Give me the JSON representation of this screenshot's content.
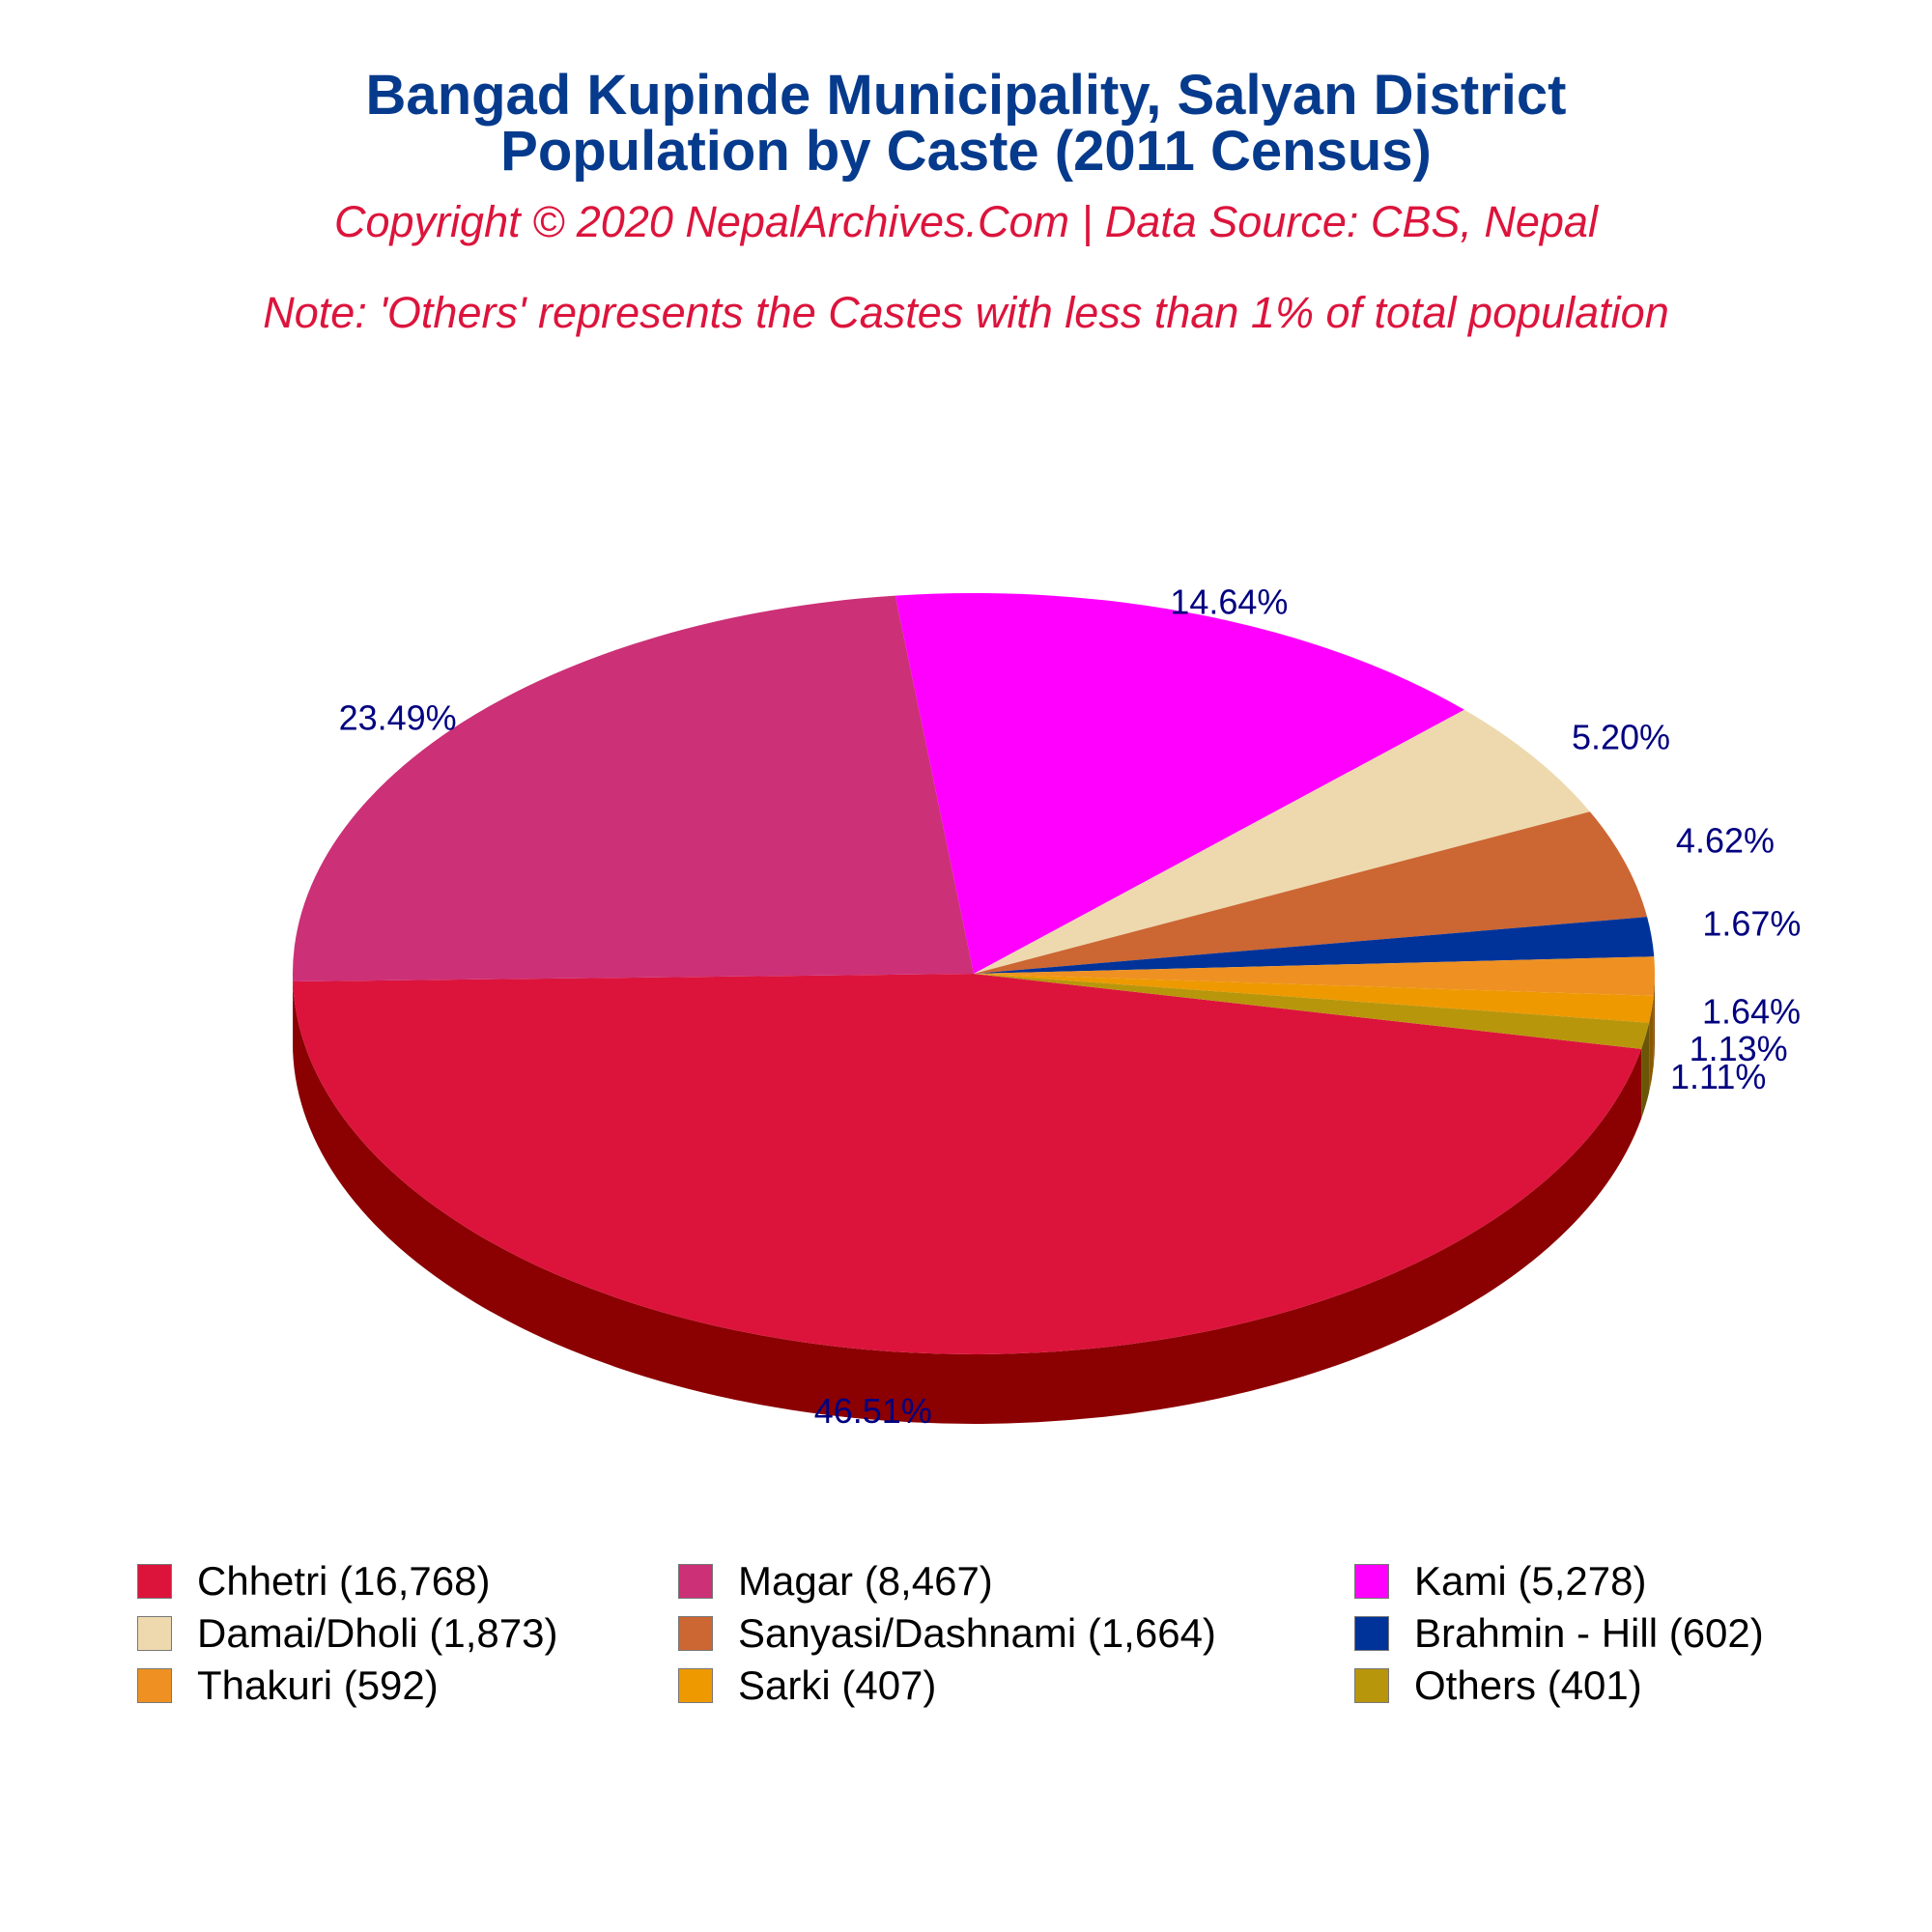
{
  "header": {
    "title_line1": "Bangad Kupinde Municipality, Salyan District",
    "title_line2": "Population by Caste (2011 Census)",
    "copyright": "Copyright © 2020 NepalArchives.Com | Data Source: CBS, Nepal",
    "note": "Note: 'Others' represents the Castes with less than 1% of total population"
  },
  "chart_data": {
    "type": "pie",
    "title": "Bangad Kupinde Municipality, Salyan District Population by Caste (2011 Census)",
    "style": "3d",
    "legend_position": "bottom",
    "label_color": "#000080",
    "slices": [
      {
        "name": "Chhetri",
        "legend": "Chhetri (16,768)",
        "value": 16768,
        "percent_label": "46.51%",
        "color": "#dc143c",
        "side_color": "#8b0000"
      },
      {
        "name": "Magar",
        "legend": "Magar (8,467)",
        "value": 8467,
        "percent_label": "23.49%",
        "color": "#cc3077",
        "side_color": "#6e0020"
      },
      {
        "name": "Kami",
        "legend": "Kami (5,278)",
        "value": 5278,
        "percent_label": "14.64%",
        "color": "#ff00ff",
        "side_color": "#a300a3"
      },
      {
        "name": "Damai/Dholi",
        "legend": "Damai/Dholi (1,873)",
        "value": 1873,
        "percent_label": "5.20%",
        "color": "#eed9ae",
        "side_color": "#9a8a5e"
      },
      {
        "name": "Sanyasi/Dashnami",
        "legend": "Sanyasi/Dashnami (1,664)",
        "value": 1664,
        "percent_label": "4.62%",
        "color": "#cc6633",
        "side_color": "#7a3a1a"
      },
      {
        "name": "Brahmin - Hill",
        "legend": "Brahmin - Hill (602)",
        "value": 602,
        "percent_label": "1.67%",
        "color": "#003399",
        "side_color": "#001a55"
      },
      {
        "name": "Thakuri",
        "legend": "Thakuri (592)",
        "value": 592,
        "percent_label": "1.64%",
        "color": "#ee9122",
        "side_color": "#8a5010"
      },
      {
        "name": "Sarki",
        "legend": "Sarki (407)",
        "value": 407,
        "percent_label": "1.13%",
        "color": "#ee9900",
        "side_color": "#8a5800"
      },
      {
        "name": "Others",
        "legend": "Others (401)",
        "value": 401,
        "percent_label": "1.11%",
        "color": "#b8960c",
        "side_color": "#6a5606"
      }
    ]
  }
}
